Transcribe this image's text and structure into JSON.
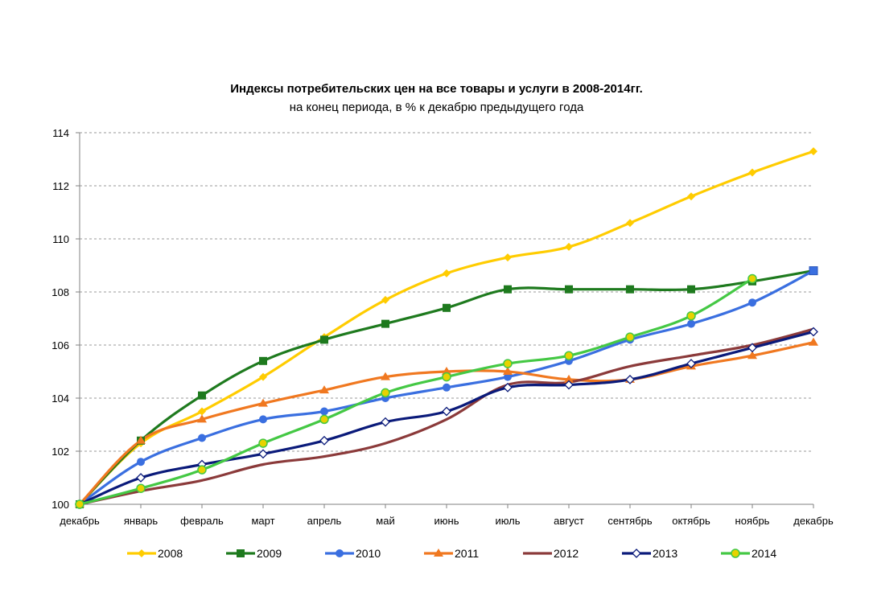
{
  "chart_data": {
    "type": "line",
    "title": "Индексы потребительских цен на все товары и услуги в 2008-2014гг.",
    "subtitle": "на конец периода, в % к декабрю предыдущего года",
    "categories": [
      "декабрь",
      "январь",
      "февраль",
      "март",
      "апрель",
      "май",
      "июнь",
      "июль",
      "август",
      "сентябрь",
      "октябрь",
      "ноябрь",
      "декабрь"
    ],
    "ylim": [
      100,
      114
    ],
    "yticks": [
      100,
      102,
      104,
      106,
      108,
      110,
      112,
      114
    ],
    "grid": "horizontal dashed",
    "legend_position": "bottom",
    "series": [
      {
        "name": "2008",
        "color": "#FFCC00",
        "marker": "diamond",
        "values": [
          100,
          102.3,
          103.5,
          104.8,
          106.3,
          107.7,
          108.7,
          109.3,
          109.7,
          110.6,
          111.6,
          112.5,
          113.3
        ]
      },
      {
        "name": "2009",
        "color": "#1E7A1E",
        "marker": "square",
        "values": [
          100,
          102.4,
          104.1,
          105.4,
          106.2,
          106.8,
          107.4,
          108.1,
          108.1,
          108.1,
          108.1,
          108.4,
          108.8
        ]
      },
      {
        "name": "2010",
        "color": "#3A6FE0",
        "marker": "circle",
        "values": [
          100,
          101.6,
          102.5,
          103.2,
          103.5,
          104.0,
          104.4,
          104.8,
          105.4,
          106.2,
          106.8,
          107.6,
          108.8
        ]
      },
      {
        "name": "2011",
        "color": "#F07820",
        "marker": "triangle",
        "values": [
          100,
          102.4,
          103.2,
          103.8,
          104.3,
          104.8,
          105.0,
          105.0,
          104.7,
          104.7,
          105.2,
          105.6,
          106.1
        ]
      },
      {
        "name": "2012",
        "color": "#8B3A3A",
        "marker": "none",
        "values": [
          100,
          100.5,
          100.9,
          101.5,
          101.8,
          102.3,
          103.2,
          104.5,
          104.6,
          105.2,
          105.6,
          106.0,
          106.6
        ]
      },
      {
        "name": "2013",
        "color": "#0A1A7A",
        "marker": "open-diamond",
        "values": [
          100,
          101.0,
          101.5,
          101.9,
          102.4,
          103.1,
          103.5,
          104.4,
          104.5,
          104.7,
          105.3,
          105.9,
          106.5
        ]
      },
      {
        "name": "2014",
        "color": "#44C844",
        "marker": "circle-yellow",
        "values": [
          100,
          100.6,
          101.3,
          102.3,
          103.2,
          104.2,
          104.8,
          105.3,
          105.6,
          106.3,
          107.1,
          108.5,
          null
        ]
      }
    ]
  }
}
